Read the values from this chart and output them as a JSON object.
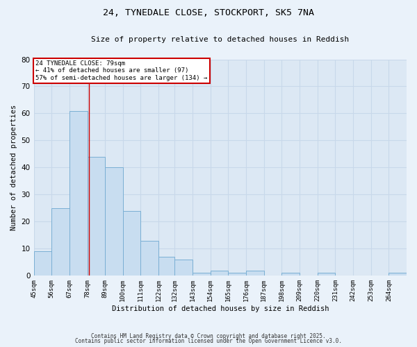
{
  "title1": "24, TYNEDALE CLOSE, STOCKPORT, SK5 7NA",
  "title2": "Size of property relative to detached houses in Reddish",
  "xlabel": "Distribution of detached houses by size in Reddish",
  "ylabel": "Number of detached properties",
  "bar_edges": [
    45,
    56,
    67,
    78,
    89,
    100,
    111,
    122,
    132,
    143,
    154,
    165,
    176,
    187,
    198,
    209,
    220,
    231,
    242,
    253,
    264,
    275
  ],
  "bar_heights": [
    9,
    25,
    61,
    44,
    40,
    24,
    13,
    7,
    6,
    1,
    2,
    1,
    2,
    0,
    1,
    0,
    1,
    0,
    0,
    0,
    1
  ],
  "bar_color": "#c8ddf0",
  "bar_edge_color": "#7aafd4",
  "vline_x": 79,
  "vline_color": "#cc0000",
  "ylim": [
    0,
    80
  ],
  "yticks": [
    0,
    10,
    20,
    30,
    40,
    50,
    60,
    70,
    80
  ],
  "annotation_line1": "24 TYNEDALE CLOSE: 79sqm",
  "annotation_line2": "← 41% of detached houses are smaller (97)",
  "annotation_line3": "57% of semi-detached houses are larger (134) →",
  "annotation_box_color": "#ffffff",
  "annotation_box_edge_color": "#cc0000",
  "grid_color": "#c8d8ea",
  "bg_color": "#dce8f4",
  "fig_bg_color": "#eaf2fa",
  "tick_labels": [
    "45sqm",
    "56sqm",
    "67sqm",
    "78sqm",
    "89sqm",
    "100sqm",
    "111sqm",
    "122sqm",
    "132sqm",
    "143sqm",
    "154sqm",
    "165sqm",
    "176sqm",
    "187sqm",
    "198sqm",
    "209sqm",
    "220sqm",
    "231sqm",
    "242sqm",
    "253sqm",
    "264sqm"
  ],
  "footnote1": "Contains HM Land Registry data © Crown copyright and database right 2025.",
  "footnote2": "Contains public sector information licensed under the Open Government Licence v3.0."
}
